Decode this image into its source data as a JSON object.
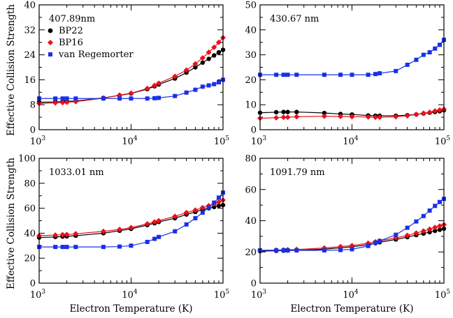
{
  "chart_data": {
    "type": "line",
    "xlabel": "Electron Temperature (K)",
    "ylabel": "Effective Collision Strength",
    "xscale": "log",
    "xlim": [
      1000,
      100000
    ],
    "x_tick_labels": [
      {
        "base": "10",
        "exp": "3"
      },
      {
        "base": "10",
        "exp": "4"
      },
      {
        "base": "10",
        "exp": "5"
      }
    ],
    "legend": [
      "BP22",
      "BP16",
      "van Regemorter"
    ],
    "colors": {
      "BP22": "#000000",
      "BP16": "#e8121b",
      "van Regemorter": "#1830e8"
    },
    "x": [
      1000,
      1500,
      1800,
      2000,
      2500,
      5000,
      7500,
      10000,
      15000,
      18000,
      20000,
      30000,
      40000,
      50000,
      60000,
      70000,
      80000,
      90000,
      100000
    ],
    "panels": [
      {
        "title": "407.89nm",
        "ylim": [
          0,
          40
        ],
        "y_ticks": [
          0,
          8,
          16,
          24,
          32,
          40
        ],
        "legend_shown": true,
        "series": [
          {
            "name": "BP22",
            "values": [
              8.8,
              8.9,
              9.0,
              9.1,
              9.2,
              10.2,
              11.0,
              11.6,
              13.0,
              13.9,
              14.5,
              16.4,
              18.3,
              20.0,
              21.5,
              22.7,
              23.8,
              24.8,
              25.6
            ]
          },
          {
            "name": "BP16",
            "values": [
              8.4,
              8.6,
              8.7,
              8.8,
              9.0,
              10.1,
              11.1,
              11.7,
              13.2,
              14.2,
              14.9,
              17.1,
              19.1,
              21.1,
              23.0,
              24.8,
              26.4,
              28.0,
              29.5
            ]
          },
          {
            "name": "van Regemorter",
            "values": [
              10.0,
              10.0,
              10.0,
              10.0,
              10.0,
              10.0,
              10.0,
              10.0,
              10.0,
              10.1,
              10.2,
              10.8,
              11.9,
              12.8,
              13.8,
              14.2,
              14.6,
              15.2,
              16.0
            ]
          }
        ]
      },
      {
        "title": "430.67 nm",
        "ylim": [
          0,
          50
        ],
        "y_ticks": [
          0,
          10,
          20,
          30,
          40,
          50
        ],
        "legend_shown": false,
        "series": [
          {
            "name": "BP22",
            "values": [
              6.8,
              7.0,
              7.1,
              7.1,
              7.1,
              6.7,
              6.3,
              6.1,
              5.7,
              5.6,
              5.6,
              5.6,
              5.8,
              6.1,
              6.5,
              6.8,
              7.1,
              7.4,
              7.8
            ]
          },
          {
            "name": "BP16",
            "values": [
              4.6,
              4.8,
              5.0,
              5.0,
              5.2,
              5.4,
              5.3,
              5.2,
              5.1,
              5.0,
              5.0,
              5.2,
              5.6,
              6.1,
              6.6,
              7.0,
              7.5,
              7.9,
              8.2
            ]
          },
          {
            "name": "van Regemorter",
            "values": [
              22.0,
              22.0,
              22.0,
              22.0,
              22.0,
              22.0,
              22.0,
              22.0,
              22.0,
              22.3,
              22.6,
              23.5,
              26.0,
              28.0,
              30.0,
              31.0,
              32.5,
              34.0,
              36.0
            ]
          }
        ]
      },
      {
        "title": "1033.01 nm",
        "ylim": [
          0,
          100
        ],
        "y_ticks": [
          0,
          20,
          40,
          60,
          80,
          100
        ],
        "legend_shown": false,
        "series": [
          {
            "name": "BP22",
            "values": [
              36.5,
              37.0,
              37.3,
              37.5,
              38.0,
              40.0,
              42.0,
              43.5,
              46.5,
              48.0,
              49.0,
              52.0,
              55.0,
              57.0,
              59.0,
              60.0,
              61.0,
              62.0,
              62.5
            ]
          },
          {
            "name": "BP16",
            "values": [
              38.0,
              38.5,
              38.8,
              39.0,
              39.5,
              41.5,
              43.0,
              44.5,
              47.5,
              49.0,
              50.0,
              53.5,
              56.5,
              58.5,
              60.5,
              62.0,
              63.5,
              65.0,
              66.5
            ]
          },
          {
            "name": "van Regemorter",
            "values": [
              29.0,
              29.0,
              29.0,
              29.0,
              29.0,
              29.0,
              29.3,
              30.0,
              33.0,
              35.5,
              37.0,
              41.5,
              47.0,
              52.0,
              56.5,
              60.5,
              64.5,
              68.5,
              72.5
            ]
          }
        ]
      },
      {
        "title": "1091.79 nm",
        "ylim": [
          0,
          80
        ],
        "y_ticks": [
          0,
          20,
          40,
          60,
          80
        ],
        "legend_shown": false,
        "series": [
          {
            "name": "BP22",
            "values": [
              20.5,
              20.7,
              20.8,
              20.9,
              21.0,
              21.8,
              22.6,
              23.3,
              24.7,
              25.6,
              26.2,
              28.0,
              29.5,
              30.8,
              31.8,
              32.7,
              33.5,
              34.2,
              34.9
            ]
          },
          {
            "name": "BP16",
            "values": [
              21.0,
              21.2,
              21.3,
              21.4,
              21.6,
              22.5,
              23.4,
              24.1,
              25.6,
              26.5,
              27.1,
              29.0,
              30.6,
              32.1,
              33.4,
              34.6,
              35.7,
              36.6,
              37.5
            ]
          },
          {
            "name": "van Regemorter",
            "values": [
              21.0,
              21.0,
              21.0,
              21.0,
              21.0,
              21.0,
              21.2,
              21.7,
              23.8,
              26.0,
              27.0,
              31.0,
              35.5,
              39.5,
              43.0,
              46.5,
              49.5,
              52.0,
              54.0
            ]
          }
        ]
      }
    ]
  }
}
